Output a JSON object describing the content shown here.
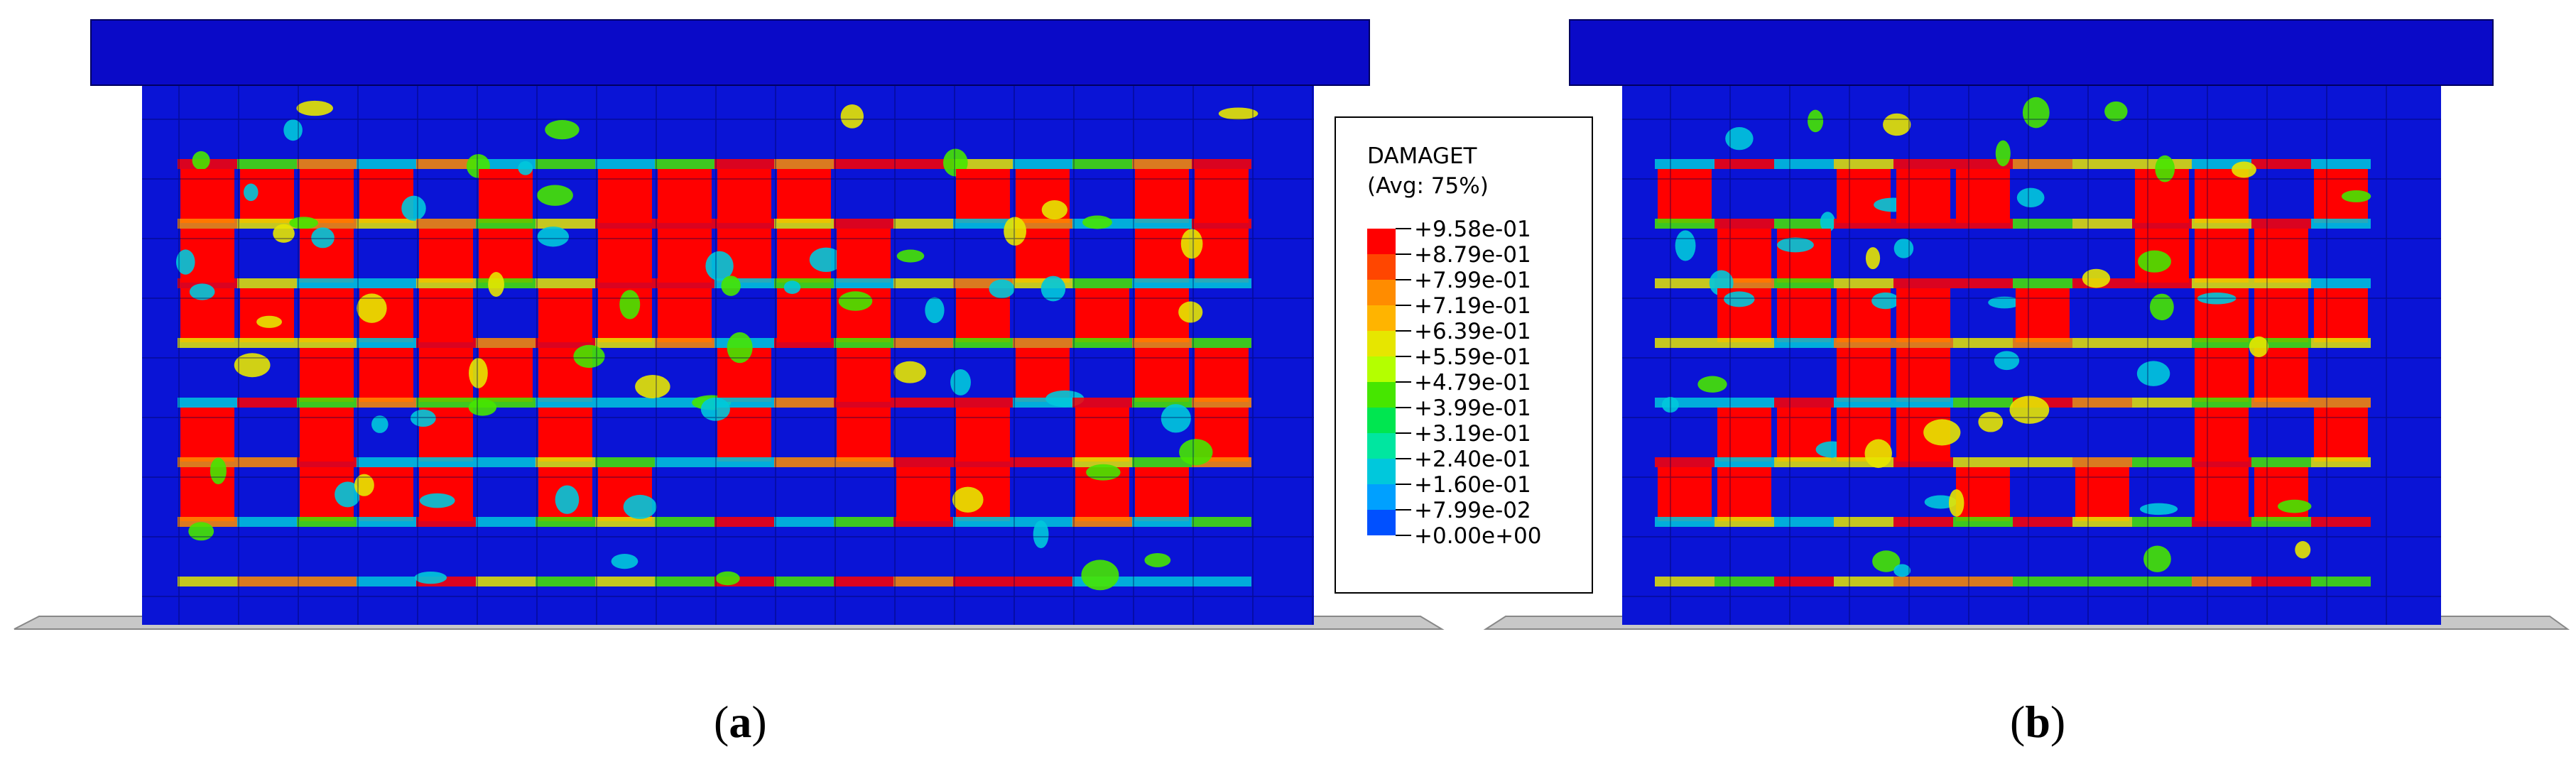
{
  "legend": {
    "title": "DAMAGET",
    "subtitle": "(Avg: 75%)",
    "levels": [
      {
        "label": "+9.58e-01",
        "color": "#ff0000"
      },
      {
        "label": "+8.79e-01",
        "color": "#ff4600"
      },
      {
        "label": "+7.99e-01",
        "color": "#ff8c00"
      },
      {
        "label": "+7.19e-01",
        "color": "#ffb400"
      },
      {
        "label": "+6.39e-01",
        "color": "#e6e600"
      },
      {
        "label": "+5.59e-01",
        "color": "#b4ff00"
      },
      {
        "label": "+4.79e-01",
        "color": "#46e600"
      },
      {
        "label": "+3.99e-01",
        "color": "#00e650"
      },
      {
        "label": "+3.19e-01",
        "color": "#00e6a0"
      },
      {
        "label": "+2.40e-01",
        "color": "#00c8dc"
      },
      {
        "label": "+1.60e-01",
        "color": "#00a0ff"
      },
      {
        "label": "+7.99e-02",
        "color": "#0050ff"
      },
      {
        "label": "+0.00e+00",
        "color": "#0000ff"
      }
    ]
  },
  "panels": [
    {
      "caption_open": "(",
      "caption_letter": "a",
      "caption_close": ")"
    },
    {
      "caption_open": "(",
      "caption_letter": "b",
      "caption_close": ")"
    }
  ],
  "colors": {
    "background_blue": "#0a14d6",
    "cap_blue": "#0a0ac8",
    "damage_red": "#ff0000",
    "base_gray": "#c8c8c8"
  }
}
